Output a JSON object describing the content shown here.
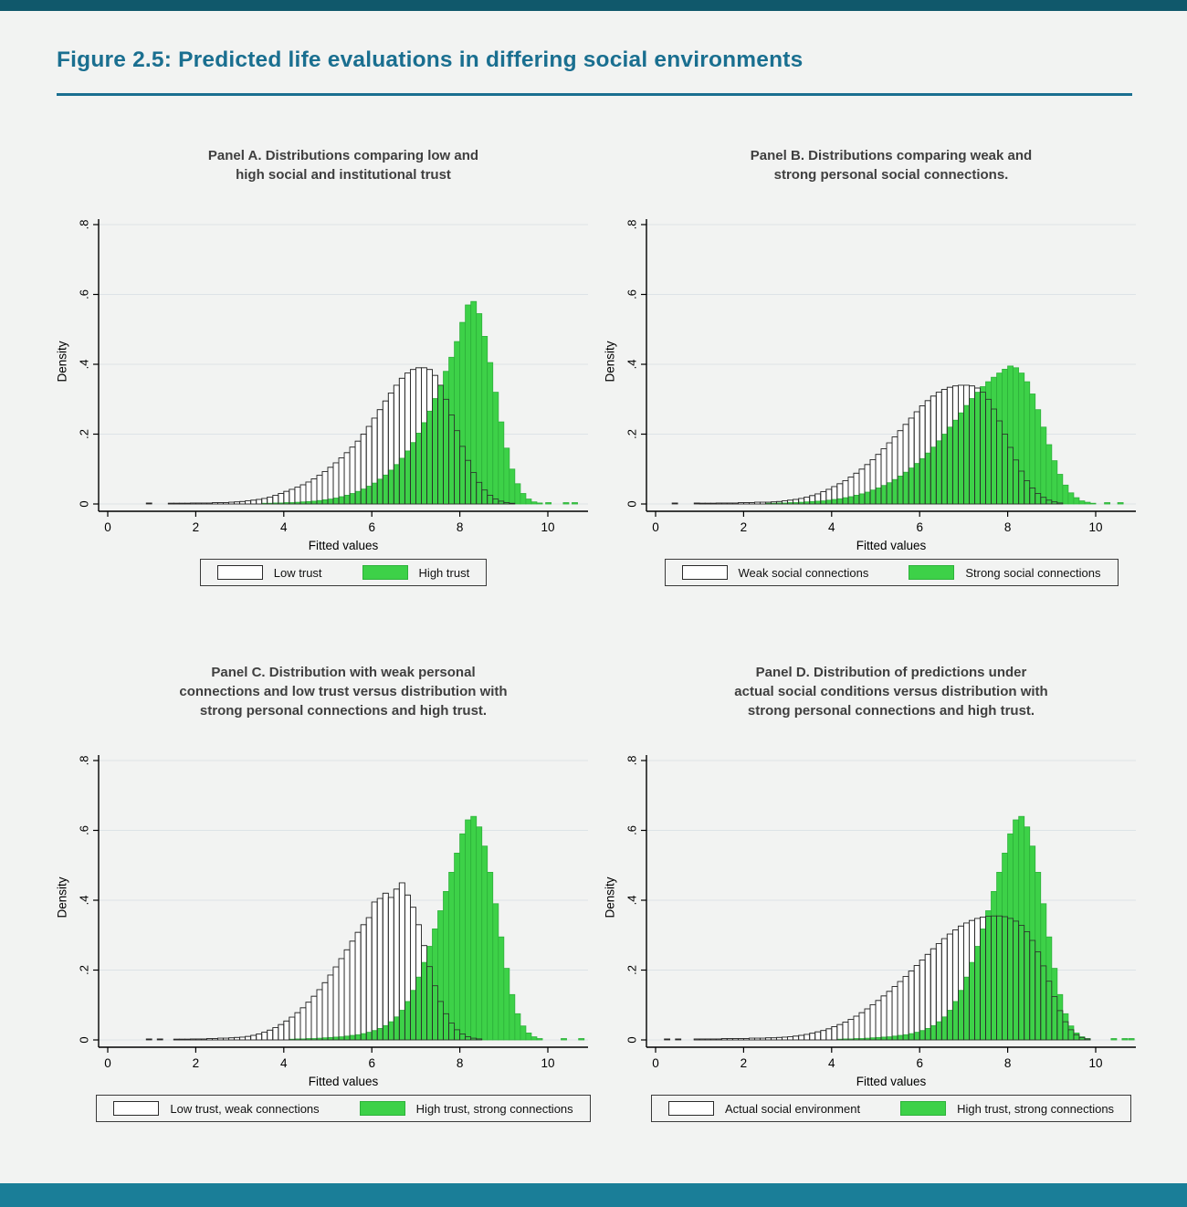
{
  "page": {
    "title": "Figure 2.5: Predicted life evaluations in differing social environments",
    "accent_color": "#1a6f90",
    "background": "#f2f3f2",
    "top_bar_color": "#10586b",
    "bottom_bar_color": "#1a7e98"
  },
  "colors": {
    "hollow_fill": "#ffffff",
    "hollow_stroke": "#2a2a2a",
    "green_fill": "#3dd148",
    "green_stroke": "#2db13a",
    "grid": "#dde3e7",
    "axis": "#000000"
  },
  "axes": {
    "xlabel": "Fitted values",
    "ylabel": "Density",
    "x_ticks": [
      0,
      2,
      4,
      6,
      8,
      10
    ],
    "y_ticks": [
      "0",
      ".2",
      ".4",
      ".6",
      ".8"
    ],
    "x_range": [
      -0.25,
      10.9
    ],
    "y_range": [
      0,
      0.8
    ],
    "grid": "horizontal"
  },
  "chart_data": [
    {
      "type": "bar",
      "panel": "A",
      "title_lines": [
        "Panel A. Distributions comparing low and",
        "high social and institutional trust"
      ],
      "bin_width": 0.125,
      "legend_position": "bottom",
      "series": [
        {
          "name": "Low trust",
          "style": "hollow",
          "start": 1.375,
          "heights": [
            0.002,
            0.002,
            0.002,
            0.002,
            0.003,
            0.003,
            0.003,
            0.003,
            0.004,
            0.004,
            0.004,
            0.005,
            0.006,
            0.007,
            0.009,
            0.011,
            0.013,
            0.016,
            0.02,
            0.025,
            0.03,
            0.036,
            0.042,
            0.048,
            0.055,
            0.063,
            0.072,
            0.082,
            0.093,
            0.105,
            0.118,
            0.132,
            0.147,
            0.163,
            0.18,
            0.2,
            0.222,
            0.246,
            0.27,
            0.295,
            0.318,
            0.34,
            0.36,
            0.375,
            0.385,
            0.39,
            0.39,
            0.385,
            0.368,
            0.34,
            0.3,
            0.255,
            0.21,
            0.165,
            0.125,
            0.09,
            0.062,
            0.04,
            0.025,
            0.014,
            0.008,
            0.004,
            0.002
          ],
          "spikes": [
            [
              0.875,
              0.003
            ]
          ]
        },
        {
          "name": "High trust",
          "style": "green",
          "start": 3.5,
          "heights": [
            0.002,
            0.002,
            0.003,
            0.003,
            0.004,
            0.004,
            0.005,
            0.006,
            0.007,
            0.008,
            0.01,
            0.012,
            0.014,
            0.017,
            0.021,
            0.025,
            0.03,
            0.036,
            0.043,
            0.051,
            0.06,
            0.071,
            0.083,
            0.097,
            0.113,
            0.131,
            0.152,
            0.176,
            0.203,
            0.233,
            0.266,
            0.302,
            0.34,
            0.38,
            0.42,
            0.465,
            0.52,
            0.57,
            0.58,
            0.545,
            0.48,
            0.405,
            0.32,
            0.235,
            0.16,
            0.1,
            0.058,
            0.03,
            0.014,
            0.006,
            0.003
          ],
          "spikes": [
            [
              9.95,
              0.004
            ],
            [
              10.35,
              0.004
            ],
            [
              10.55,
              0.004
            ]
          ]
        }
      ]
    },
    {
      "type": "bar",
      "panel": "B",
      "title_lines": [
        "Panel B. Distributions comparing weak and",
        "strong personal social connections."
      ],
      "bin_width": 0.125,
      "legend_position": "bottom",
      "series": [
        {
          "name": "Weak social connections",
          "style": "hollow",
          "start": 1.0,
          "heights": [
            0.002,
            0.002,
            0.002,
            0.003,
            0.003,
            0.003,
            0.003,
            0.004,
            0.004,
            0.004,
            0.005,
            0.005,
            0.005,
            0.006,
            0.007,
            0.009,
            0.011,
            0.013,
            0.016,
            0.02,
            0.024,
            0.029,
            0.035,
            0.042,
            0.05,
            0.058,
            0.067,
            0.077,
            0.088,
            0.1,
            0.113,
            0.127,
            0.142,
            0.158,
            0.175,
            0.192,
            0.21,
            0.228,
            0.246,
            0.264,
            0.281,
            0.296,
            0.309,
            0.32,
            0.328,
            0.334,
            0.338,
            0.34,
            0.34,
            0.338,
            0.332,
            0.32,
            0.3,
            0.272,
            0.238,
            0.2,
            0.162,
            0.126,
            0.094,
            0.067,
            0.046,
            0.03,
            0.019,
            0.011,
            0.006,
            0.003
          ],
          "spikes": [
            [
              0.375,
              0.003
            ],
            [
              0.875,
              0.003
            ]
          ]
        },
        {
          "name": "Strong social connections",
          "style": "green",
          "start": 2.5,
          "heights": [
            0.002,
            0.002,
            0.003,
            0.003,
            0.004,
            0.004,
            0.005,
            0.006,
            0.007,
            0.008,
            0.009,
            0.011,
            0.013,
            0.015,
            0.018,
            0.021,
            0.025,
            0.029,
            0.034,
            0.04,
            0.046,
            0.053,
            0.061,
            0.07,
            0.08,
            0.091,
            0.103,
            0.116,
            0.13,
            0.146,
            0.163,
            0.181,
            0.2,
            0.22,
            0.24,
            0.261,
            0.282,
            0.302,
            0.32,
            0.336,
            0.35,
            0.363,
            0.375,
            0.386,
            0.395,
            0.39,
            0.375,
            0.35,
            0.315,
            0.27,
            0.22,
            0.17,
            0.124,
            0.085,
            0.054,
            0.032,
            0.018,
            0.009,
            0.005,
            0.002
          ],
          "spikes": [
            [
              10.2,
              0.004
            ],
            [
              10.5,
              0.004
            ]
          ]
        }
      ]
    },
    {
      "type": "bar",
      "panel": "C",
      "title_lines": [
        "Panel C. Distribution with weak personal",
        "connections and low trust versus distribution with",
        "strong personal connections and high trust."
      ],
      "bin_width": 0.125,
      "legend_position": "bottom",
      "series": [
        {
          "name": "Low trust, weak connections",
          "style": "hollow",
          "start": 1.5,
          "heights": [
            0.002,
            0.002,
            0.002,
            0.003,
            0.003,
            0.003,
            0.004,
            0.004,
            0.005,
            0.005,
            0.006,
            0.007,
            0.008,
            0.01,
            0.013,
            0.017,
            0.022,
            0.028,
            0.035,
            0.044,
            0.054,
            0.065,
            0.078,
            0.092,
            0.108,
            0.125,
            0.144,
            0.164,
            0.186,
            0.209,
            0.233,
            0.258,
            0.283,
            0.308,
            0.33,
            0.35,
            0.395,
            0.405,
            0.42,
            0.408,
            0.432,
            0.45,
            0.415,
            0.38,
            0.33,
            0.27,
            0.21,
            0.155,
            0.11,
            0.075,
            0.048,
            0.029,
            0.017,
            0.009,
            0.005,
            0.003
          ],
          "spikes": [
            [
              0.875,
              0.003
            ],
            [
              1.125,
              0.003
            ]
          ]
        },
        {
          "name": "High trust, strong connections",
          "style": "green",
          "start": 4.125,
          "heights": [
            0.002,
            0.003,
            0.003,
            0.004,
            0.004,
            0.005,
            0.006,
            0.007,
            0.008,
            0.009,
            0.011,
            0.013,
            0.015,
            0.018,
            0.022,
            0.027,
            0.033,
            0.041,
            0.052,
            0.066,
            0.085,
            0.11,
            0.142,
            0.18,
            0.222,
            0.268,
            0.318,
            0.37,
            0.425,
            0.48,
            0.535,
            0.59,
            0.63,
            0.64,
            0.61,
            0.555,
            0.48,
            0.39,
            0.295,
            0.205,
            0.13,
            0.075,
            0.04,
            0.02,
            0.009,
            0.004
          ],
          "spikes": [
            [
              10.3,
              0.004
            ],
            [
              10.7,
              0.004
            ]
          ]
        }
      ]
    },
    {
      "type": "bar",
      "panel": "D",
      "title_lines": [
        "Panel D. Distribution of predictions under",
        "actual social conditions versus distribution with",
        "strong personal connections and high trust."
      ],
      "bin_width": 0.125,
      "legend_position": "bottom",
      "series": [
        {
          "name": "Actual social environment",
          "style": "hollow",
          "start": 0.875,
          "heights": [
            0.003,
            0.003,
            0.003,
            0.003,
            0.003,
            0.004,
            0.004,
            0.004,
            0.004,
            0.004,
            0.005,
            0.005,
            0.005,
            0.006,
            0.006,
            0.007,
            0.008,
            0.009,
            0.011,
            0.013,
            0.016,
            0.019,
            0.023,
            0.027,
            0.032,
            0.038,
            0.044,
            0.051,
            0.059,
            0.068,
            0.078,
            0.089,
            0.101,
            0.113,
            0.126,
            0.139,
            0.153,
            0.167,
            0.182,
            0.197,
            0.213,
            0.229,
            0.245,
            0.261,
            0.276,
            0.29,
            0.303,
            0.315,
            0.326,
            0.335,
            0.342,
            0.348,
            0.352,
            0.354,
            0.355,
            0.355,
            0.353,
            0.348,
            0.34,
            0.328,
            0.31,
            0.285,
            0.252,
            0.212,
            0.168,
            0.124,
            0.084,
            0.052,
            0.029,
            0.015,
            0.007,
            0.003
          ],
          "spikes": [
            [
              0.2,
              0.003
            ],
            [
              0.45,
              0.003
            ]
          ]
        },
        {
          "name": "High trust, strong connections",
          "style": "green",
          "start": 4.125,
          "heights": [
            0.002,
            0.003,
            0.003,
            0.004,
            0.004,
            0.005,
            0.006,
            0.007,
            0.008,
            0.009,
            0.011,
            0.013,
            0.015,
            0.018,
            0.022,
            0.027,
            0.033,
            0.041,
            0.052,
            0.066,
            0.085,
            0.11,
            0.142,
            0.18,
            0.222,
            0.268,
            0.318,
            0.37,
            0.425,
            0.48,
            0.535,
            0.59,
            0.63,
            0.64,
            0.61,
            0.555,
            0.48,
            0.39,
            0.295,
            0.205,
            0.13,
            0.075,
            0.04,
            0.02,
            0.009,
            0.004
          ],
          "spikes": [
            [
              10.35,
              0.004
            ],
            [
              10.6,
              0.004
            ],
            [
              10.75,
              0.004
            ]
          ]
        }
      ]
    }
  ]
}
